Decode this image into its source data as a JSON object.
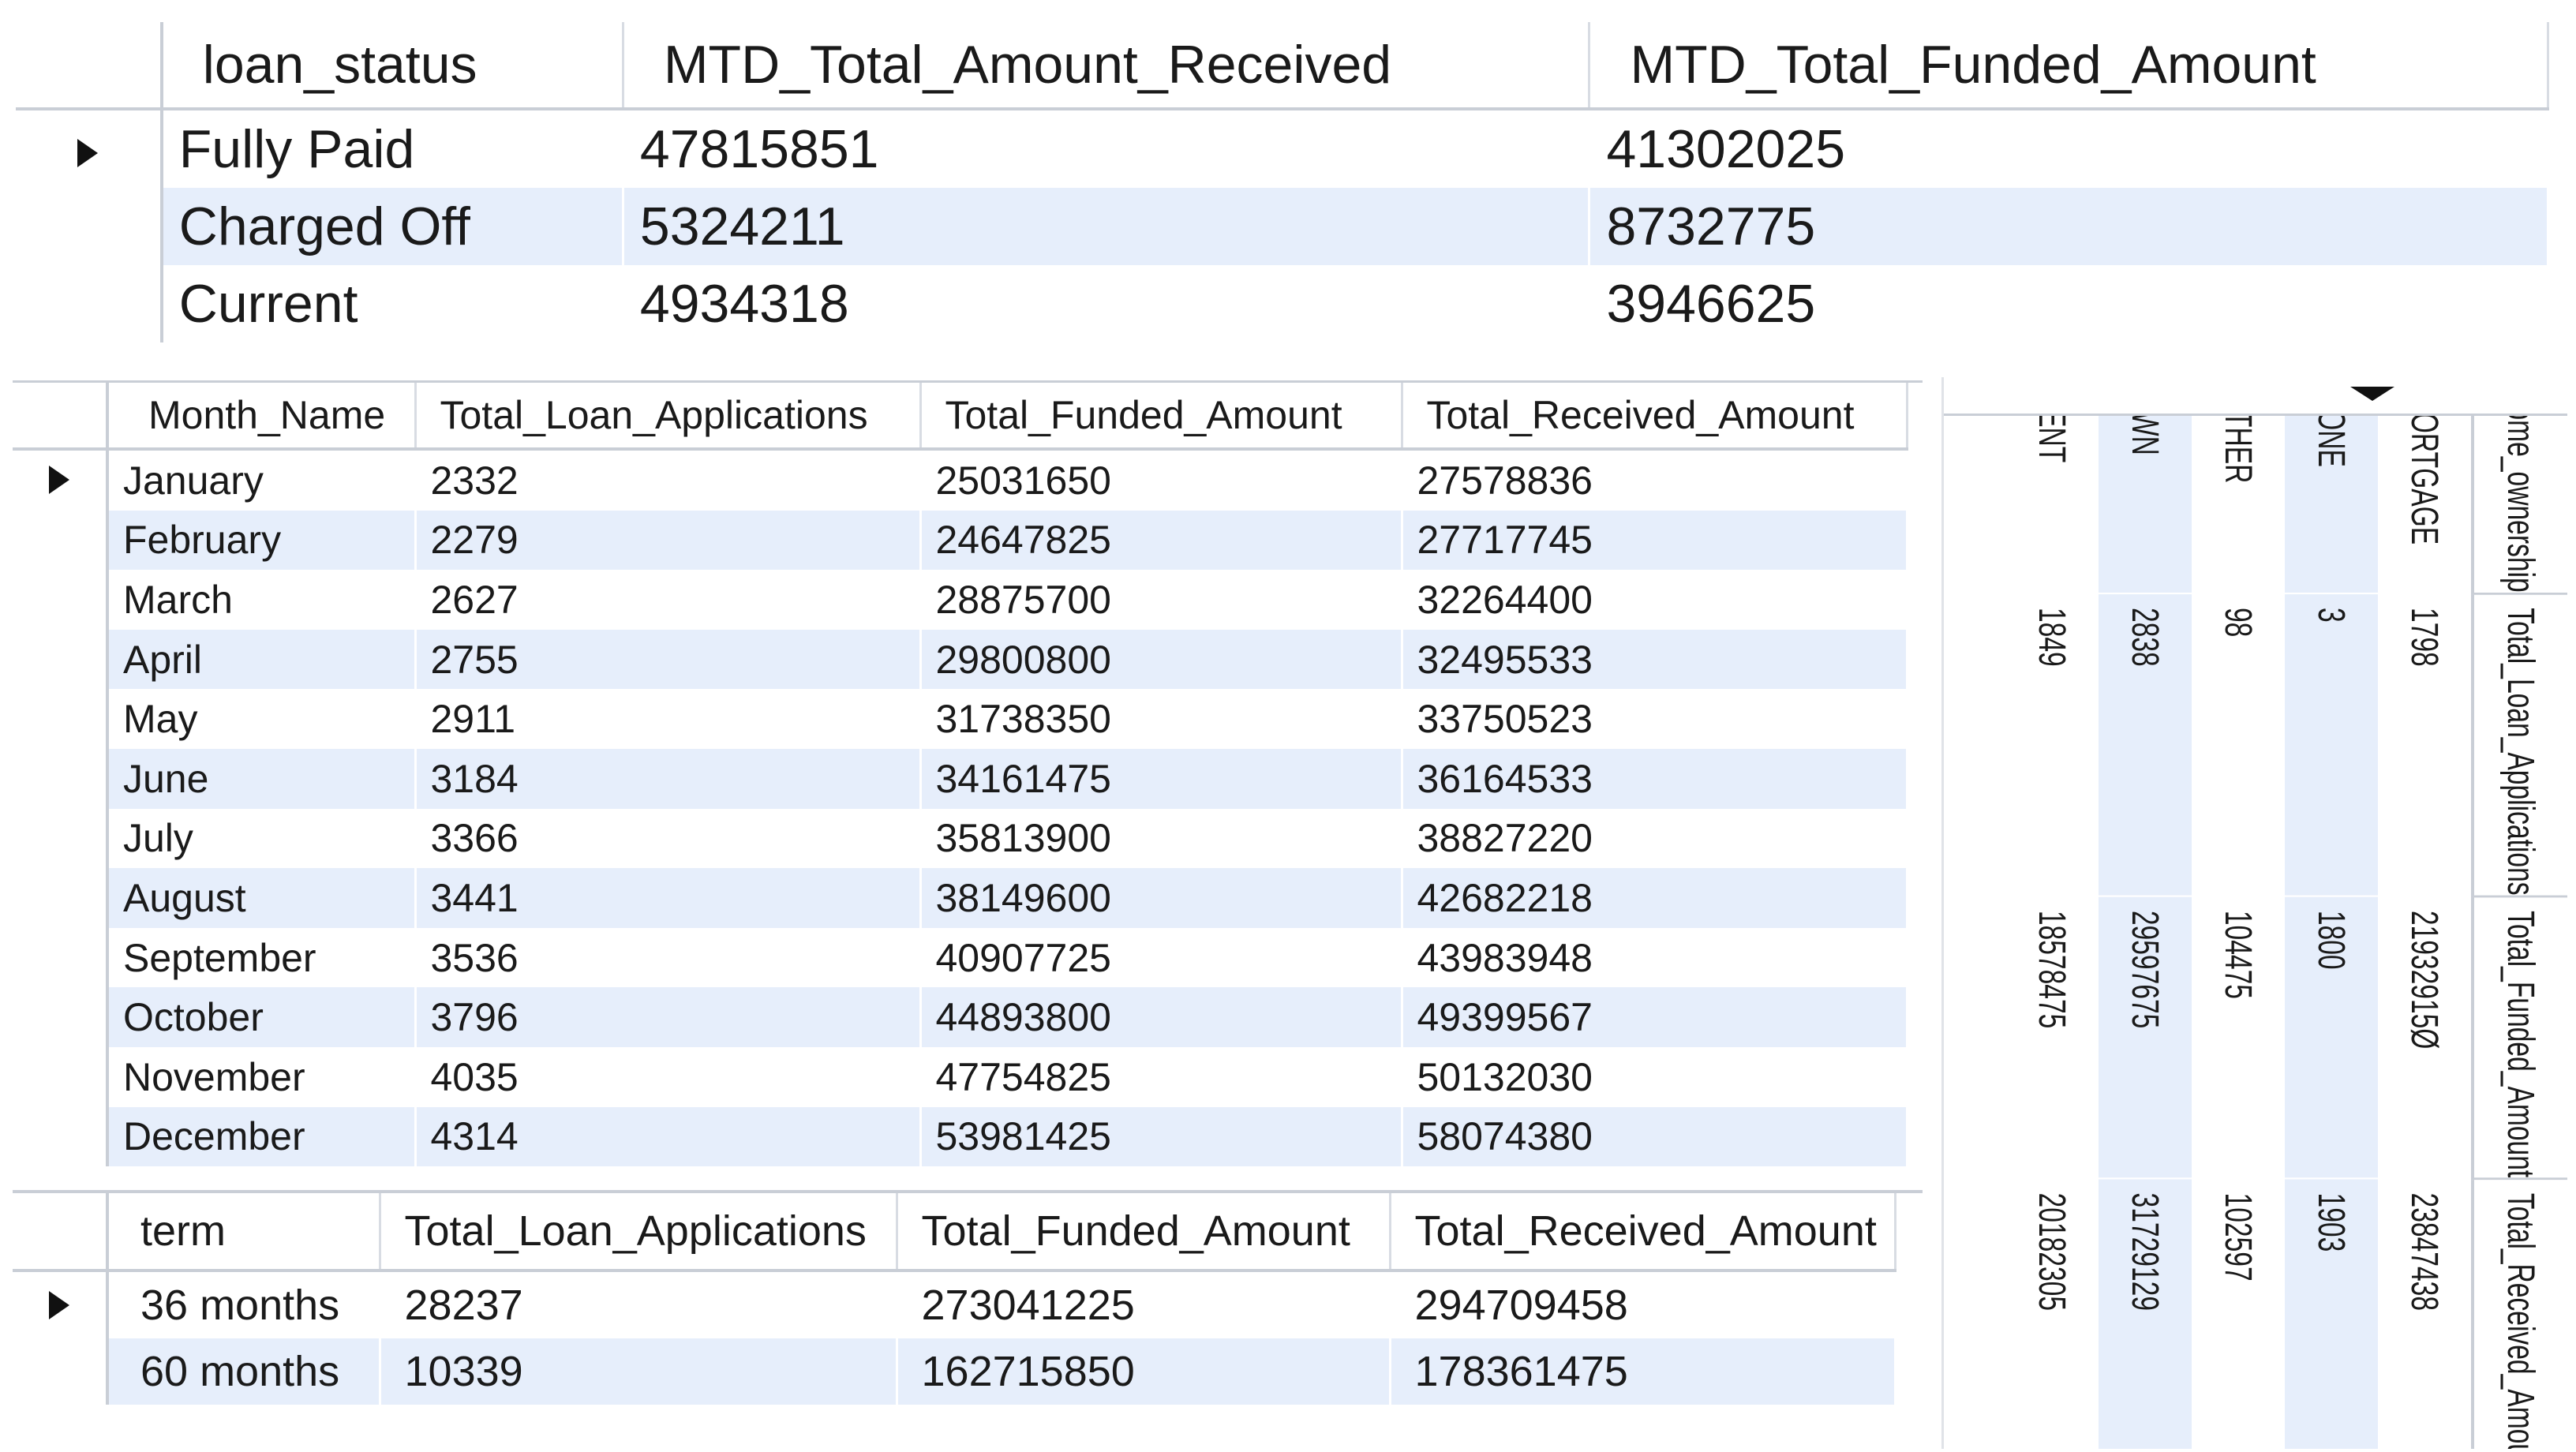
{
  "status_table": {
    "columns": [
      "loan_status",
      "MTD_Total_Amount_Received",
      "MTD_Total_Funded_Amount"
    ],
    "rows": [
      [
        "Fully Paid",
        "47815851",
        "41302025"
      ],
      [
        "Charged Off",
        "5324211",
        "8732775"
      ],
      [
        "Current",
        "4934318",
        "3946625"
      ]
    ]
  },
  "month_table": {
    "columns": [
      "Month_Name",
      "Total_Loan_Applications",
      "Total_Funded_Amount",
      "Total_Received_Amount"
    ],
    "rows": [
      [
        "January",
        "2332",
        "25031650",
        "27578836"
      ],
      [
        "February",
        "2279",
        "24647825",
        "27717745"
      ],
      [
        "March",
        "2627",
        "28875700",
        "32264400"
      ],
      [
        "April",
        "2755",
        "29800800",
        "32495533"
      ],
      [
        "May",
        "2911",
        "31738350",
        "33750523"
      ],
      [
        "June",
        "3184",
        "34161475",
        "36164533"
      ],
      [
        "July",
        "3366",
        "35813900",
        "38827220"
      ],
      [
        "August",
        "3441",
        "38149600",
        "42682218"
      ],
      [
        "September",
        "3536",
        "40907725",
        "43983948"
      ],
      [
        "October",
        "3796",
        "44893800",
        "49399567"
      ],
      [
        "November",
        "4035",
        "47754825",
        "50132030"
      ],
      [
        "December",
        "4314",
        "53981425",
        "58074380"
      ]
    ]
  },
  "term_table": {
    "columns": [
      "term",
      "Total_Loan_Applications",
      "Total_Funded_Amount",
      "Total_Received_Amount"
    ],
    "rows": [
      [
        "36 months",
        "28237",
        "273041225",
        "294709458"
      ],
      [
        "60 months",
        "10339",
        "162715850",
        "178361475"
      ]
    ]
  },
  "ownership_table": {
    "columns": [
      "home_ownership",
      "Total_Loan_Applications",
      "Total_Funded_Amount",
      "Total_Received_Amoun"
    ],
    "rows": [
      [
        "MORTGAGE",
        "1798",
        "21932915Ø",
        "23847438"
      ],
      [
        "NONE",
        "3",
        "1800",
        "1903"
      ],
      [
        "OTHER",
        "98",
        "104475",
        "102597"
      ],
      [
        "OWN",
        "2838",
        "29597675",
        "31729129"
      ],
      [
        "RENT",
        "1849",
        "18578475",
        "20182305"
      ]
    ]
  }
}
